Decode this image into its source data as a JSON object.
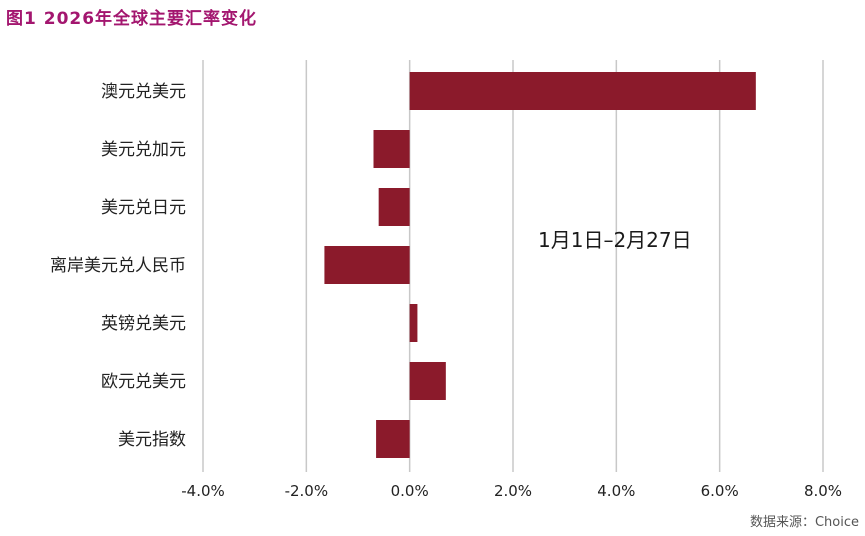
{
  "figure": {
    "title": "图1   2026年全球主要汇率变化",
    "annotation": "1月1日–2月27日",
    "source": "数据来源：Choice"
  },
  "chart_data": {
    "type": "bar",
    "orientation": "horizontal",
    "categories": [
      "澳元兑美元",
      "美元兑加元",
      "美元兑日元",
      "离岸美元兑人民币",
      "英镑兑美元",
      "欧元兑美元",
      "美元指数"
    ],
    "values": [
      6.7,
      -0.7,
      -0.6,
      -1.65,
      0.15,
      0.7,
      -0.65
    ],
    "unit": "%",
    "xlim": [
      -4,
      8
    ],
    "xticks": [
      -4,
      -2,
      0,
      2,
      4,
      6,
      8
    ],
    "xtick_labels": [
      "-4.0%",
      "-2.0%",
      "0.0%",
      "2.0%",
      "4.0%",
      "6.0%",
      "8.0%"
    ],
    "grid": "vertical",
    "bar_color": "#8b1a2b",
    "grid_color": "#c8c8c8",
    "title_color": "#a3166f"
  }
}
